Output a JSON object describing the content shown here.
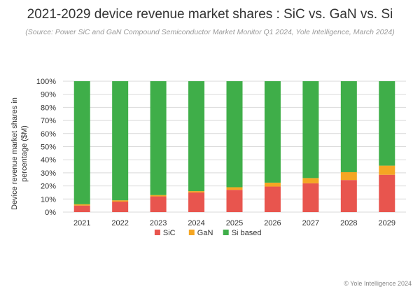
{
  "title": "2021-2029 device revenue market shares : SiC vs. GaN vs. Si",
  "subtitle": "(Source: Power SiC and GaN Compound Semiconductor Market Monitor Q1 2024, Yole Intelligence, March 2024)",
  "footer": "© Yole Intelligence 2024",
  "colors": {
    "SiC": "#e8554e",
    "GaN": "#f5a623",
    "Si based": "#3fae49",
    "grid": "#d9d9d9"
  },
  "chart_data": {
    "type": "bar",
    "stacked": true,
    "title": "2021-2029 device revenue market shares : SiC vs. GaN vs. Si",
    "xlabel": "",
    "ylabel": "Device revenue market shares  in percentage ($M)",
    "ylim": [
      0,
      100
    ],
    "yticks": [
      "0%",
      "10%",
      "20%",
      "30%",
      "40%",
      "50%",
      "60%",
      "70%",
      "80%",
      "90%",
      "100%"
    ],
    "categories": [
      "2021",
      "2022",
      "2023",
      "2024",
      "2025",
      "2026",
      "2027",
      "2028",
      "2029"
    ],
    "series": [
      {
        "name": "SiC",
        "values": [
          5,
          8,
          12,
          15,
          17,
          19.5,
          22,
          24.5,
          28.5
        ]
      },
      {
        "name": "GaN",
        "values": [
          1,
          1,
          1,
          1,
          2,
          3,
          4,
          6,
          7
        ]
      },
      {
        "name": "Si based",
        "values": [
          94,
          91,
          87,
          84,
          81,
          77.5,
          74,
          69.5,
          64.5
        ]
      }
    ],
    "legend": {
      "position": "bottom",
      "items": [
        "SiC",
        "GaN",
        "Si based"
      ]
    }
  }
}
